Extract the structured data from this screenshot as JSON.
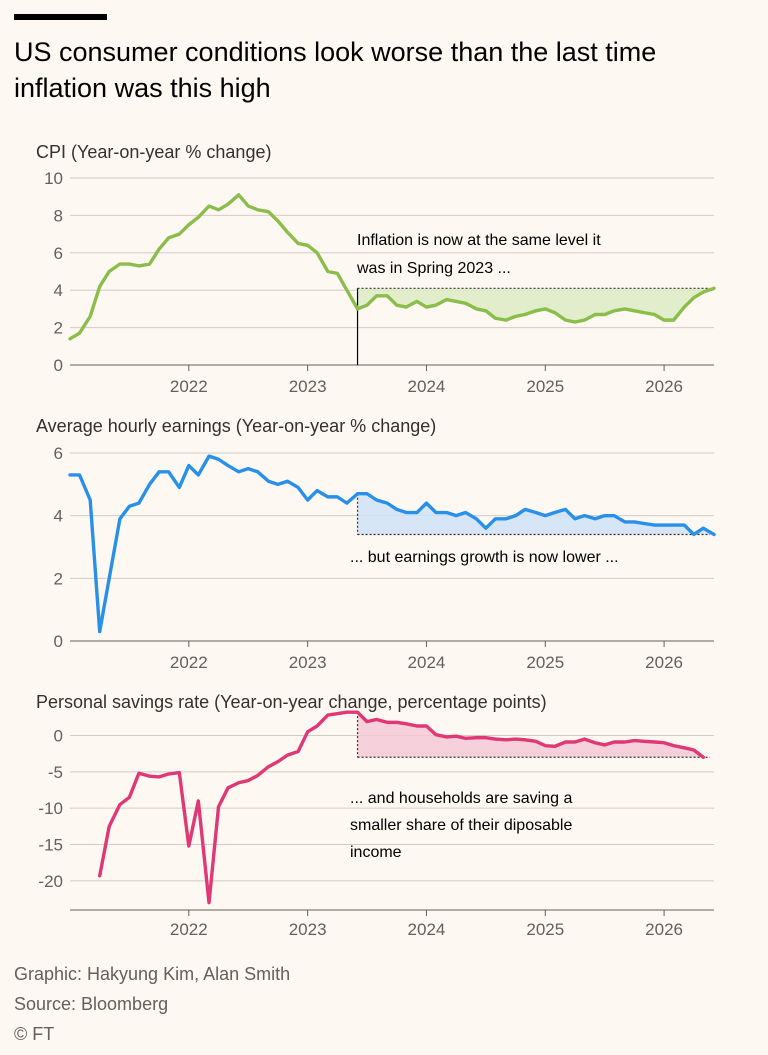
{
  "header": {
    "title": "US consumer conditions look worse than the last time inflation was this high"
  },
  "footer": {
    "graphic": "Graphic: Hakyung Kim, Alan Smith",
    "source": "Source: Bloomberg",
    "copyright": "© FT"
  },
  "chart_data": [
    {
      "type": "line",
      "title": "CPI",
      "subtitle": "(Year-on-year % change)",
      "color": "#8bbd4a",
      "fill": "#dcebc4",
      "ylim": [
        0,
        10
      ],
      "yticks": [
        0,
        2,
        4,
        6,
        8,
        10
      ],
      "ytick_labels": [
        "0",
        "2",
        "4",
        "6",
        "8",
        "10"
      ],
      "xticks": [
        2022,
        2023,
        2024,
        2025,
        2026
      ],
      "xtick_labels": [
        "2022",
        "2023",
        "2024",
        "2025",
        "2026"
      ],
      "xlim": [
        2021.0,
        2026.42
      ],
      "reference_x": 2023.42,
      "reference_y": 4.1,
      "annotation": [
        "Inflation is now at the same level it",
        "was in Spring 2023 ..."
      ],
      "x": [
        2021.0,
        2021.08,
        2021.17,
        2021.25,
        2021.33,
        2021.42,
        2021.5,
        2021.58,
        2021.67,
        2021.75,
        2021.83,
        2021.92,
        2022.0,
        2022.08,
        2022.17,
        2022.25,
        2022.33,
        2022.42,
        2022.5,
        2022.58,
        2022.67,
        2022.75,
        2022.83,
        2022.92,
        2023.0,
        2023.08,
        2023.17,
        2023.25,
        2023.33,
        2023.42,
        2023.5,
        2023.58,
        2023.67,
        2023.75,
        2023.83,
        2023.92,
        2024.0,
        2024.08,
        2024.17,
        2024.25,
        2024.33,
        2024.42,
        2024.5,
        2024.58,
        2024.67,
        2024.75,
        2024.83,
        2024.92,
        2025.0,
        2025.08,
        2025.17,
        2025.25,
        2025.33,
        2025.42,
        2025.5,
        2025.58,
        2025.67,
        2025.75,
        2025.83,
        2025.92,
        2026.0,
        2026.08,
        2026.17,
        2026.25,
        2026.33,
        2026.42
      ],
      "y": [
        1.4,
        1.7,
        2.6,
        4.2,
        5.0,
        5.4,
        5.4,
        5.3,
        5.4,
        6.2,
        6.8,
        7.0,
        7.5,
        7.9,
        8.5,
        8.3,
        8.6,
        9.1,
        8.5,
        8.3,
        8.2,
        7.7,
        7.1,
        6.5,
        6.4,
        6.0,
        5.0,
        4.9,
        4.0,
        3.0,
        3.2,
        3.7,
        3.7,
        3.2,
        3.1,
        3.4,
        3.1,
        3.2,
        3.5,
        3.4,
        3.3,
        3.0,
        2.9,
        2.5,
        2.4,
        2.6,
        2.7,
        2.9,
        3.0,
        2.8,
        2.4,
        2.3,
        2.4,
        2.7,
        2.7,
        2.9,
        3.0,
        2.9,
        2.8,
        2.7,
        2.4,
        2.4,
        3.1,
        3.6,
        3.9,
        4.1
      ]
    },
    {
      "type": "line",
      "title": "Average hourly earnings",
      "subtitle": "(Year-on-year % change)",
      "color": "#2990ea",
      "fill": "#cfe3f8",
      "ylim": [
        0,
        6
      ],
      "yticks": [
        0,
        2,
        4,
        6
      ],
      "ytick_labels": [
        "0",
        "2",
        "4",
        "6"
      ],
      "xticks": [
        2022,
        2023,
        2024,
        2025,
        2026
      ],
      "xtick_labels": [
        "2022",
        "2023",
        "2024",
        "2025",
        "2026"
      ],
      "xlim": [
        2021.0,
        2026.42
      ],
      "reference_x": 2023.42,
      "reference_y": 3.4,
      "annotation": [
        "... but earnings growth is now lower ..."
      ],
      "x": [
        2021.0,
        2021.08,
        2021.17,
        2021.25,
        2021.33,
        2021.42,
        2021.5,
        2021.58,
        2021.67,
        2021.75,
        2021.83,
        2021.92,
        2022.0,
        2022.08,
        2022.17,
        2022.25,
        2022.33,
        2022.42,
        2022.5,
        2022.58,
        2022.67,
        2022.75,
        2022.83,
        2022.92,
        2023.0,
        2023.08,
        2023.17,
        2023.25,
        2023.33,
        2023.42,
        2023.5,
        2023.58,
        2023.67,
        2023.75,
        2023.83,
        2023.92,
        2024.0,
        2024.08,
        2024.17,
        2024.25,
        2024.33,
        2024.42,
        2024.5,
        2024.58,
        2024.67,
        2024.75,
        2024.83,
        2024.92,
        2025.0,
        2025.08,
        2025.17,
        2025.25,
        2025.33,
        2025.42,
        2025.5,
        2025.58,
        2025.67,
        2025.75,
        2025.83,
        2025.92,
        2026.0,
        2026.08,
        2026.17,
        2026.25,
        2026.33,
        2026.42
      ],
      "y": [
        5.3,
        5.3,
        4.5,
        0.3,
        2.0,
        3.9,
        4.3,
        4.4,
        5.0,
        5.4,
        5.4,
        4.9,
        5.6,
        5.3,
        5.9,
        5.8,
        5.6,
        5.4,
        5.5,
        5.4,
        5.1,
        5.0,
        5.1,
        4.9,
        4.5,
        4.8,
        4.6,
        4.6,
        4.4,
        4.7,
        4.7,
        4.5,
        4.4,
        4.2,
        4.1,
        4.1,
        4.4,
        4.1,
        4.1,
        4.0,
        4.1,
        3.9,
        3.6,
        3.9,
        3.9,
        4.0,
        4.2,
        4.1,
        4.0,
        4.1,
        4.2,
        3.9,
        4.0,
        3.9,
        4.0,
        4.0,
        3.8,
        3.8,
        3.75,
        3.7,
        3.7,
        3.7,
        3.7,
        3.4,
        3.6,
        3.4
      ]
    },
    {
      "type": "line",
      "title": "Personal savings rate",
      "subtitle": "(Year-on-year change, percentage points)",
      "color": "#e03874",
      "fill": "#f4c9d6",
      "ylim": [
        -24,
        3.5
      ],
      "yticks": [
        -20,
        -15,
        -10,
        -5,
        0
      ],
      "ytick_labels": [
        "-20",
        "-15",
        "-10",
        "-5",
        "0"
      ],
      "xticks": [
        2022,
        2023,
        2024,
        2025,
        2026
      ],
      "xtick_labels": [
        "2022",
        "2023",
        "2024",
        "2025",
        "2026"
      ],
      "xlim": [
        2021.0,
        2026.42
      ],
      "reference_x": 2023.42,
      "reference_y": -3.0,
      "annotation": [
        "... and households are saving a",
        "smaller share of their diposable",
        "income"
      ],
      "x": [
        2021.25,
        2021.33,
        2021.42,
        2021.5,
        2021.58,
        2021.67,
        2021.75,
        2021.83,
        2021.92,
        2022.0,
        2022.08,
        2022.17,
        2022.25,
        2022.33,
        2022.42,
        2022.5,
        2022.58,
        2022.67,
        2022.75,
        2022.83,
        2022.92,
        2023.0,
        2023.08,
        2023.17,
        2023.25,
        2023.33,
        2023.42,
        2023.5,
        2023.58,
        2023.67,
        2023.75,
        2023.83,
        2023.92,
        2024.0,
        2024.08,
        2024.17,
        2024.25,
        2024.33,
        2024.42,
        2024.5,
        2024.58,
        2024.67,
        2024.75,
        2024.83,
        2024.92,
        2025.0,
        2025.08,
        2025.17,
        2025.25,
        2025.33,
        2025.42,
        2025.5,
        2025.58,
        2025.67,
        2025.75,
        2025.83,
        2025.92,
        2026.0,
        2026.08,
        2026.17,
        2026.25,
        2026.33
      ],
      "y": [
        -19.3,
        -12.5,
        -9.5,
        -8.5,
        -5.2,
        -5.6,
        -5.7,
        -5.3,
        -5.1,
        -15.2,
        -9.0,
        -23.0,
        -9.8,
        -7.2,
        -6.5,
        -6.2,
        -5.5,
        -4.3,
        -3.6,
        -2.7,
        -2.2,
        0.5,
        1.3,
        2.8,
        3.0,
        3.2,
        3.2,
        1.9,
        2.2,
        1.8,
        1.8,
        1.6,
        1.3,
        1.3,
        0.1,
        -0.2,
        -0.1,
        -0.4,
        -0.3,
        -0.3,
        -0.5,
        -0.6,
        -0.5,
        -0.6,
        -0.8,
        -1.4,
        -1.5,
        -0.9,
        -0.9,
        -0.5,
        -1.0,
        -1.3,
        -0.9,
        -0.9,
        -0.7,
        -0.8,
        -0.9,
        -1.0,
        -1.4,
        -1.7,
        -2.0,
        -3.0
      ]
    }
  ]
}
